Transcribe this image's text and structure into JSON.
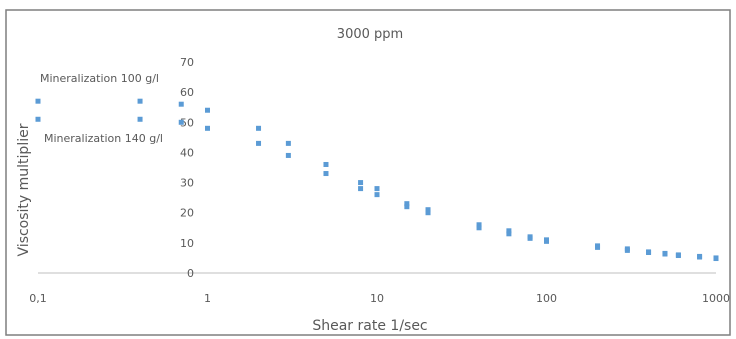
{
  "chart_data": {
    "type": "scatter",
    "title": "3000 ppm",
    "xlabel": "Shear rate 1/sec",
    "ylabel": "Viscosity multiplier",
    "x_scale": "log",
    "xlim": [
      0.1,
      1000
    ],
    "ylim": [
      0,
      70
    ],
    "x_ticks": [
      0.1,
      1,
      10,
      100,
      1000
    ],
    "x_tick_labels": [
      "0,1",
      "1",
      "10",
      "100",
      "1000"
    ],
    "y_ticks": [
      0,
      10,
      20,
      30,
      40,
      50,
      60,
      70
    ],
    "y_tick_labels": [
      "0",
      "10",
      "20",
      "30",
      "40",
      "50",
      "60",
      "70"
    ],
    "grid": false,
    "series": [
      {
        "name": "Mineralization 100 g/l",
        "color": "#5b9bd5",
        "x": [
          0.1,
          0.4,
          0.7,
          1,
          2,
          3,
          5,
          8,
          10,
          15,
          20,
          40,
          60,
          80,
          100,
          200,
          300,
          400,
          500,
          600,
          800,
          1000
        ],
        "y": [
          57,
          57,
          56,
          54,
          48,
          43,
          36,
          30,
          28,
          23,
          21,
          16,
          14,
          12,
          11,
          9,
          8,
          7,
          6.5,
          6,
          5.5,
          5
        ]
      },
      {
        "name": "Mineralization 140 g/l",
        "color": "#5b9bd5",
        "x": [
          0.1,
          0.4,
          0.7,
          1,
          2,
          3,
          5,
          8,
          10,
          15,
          20,
          40,
          60,
          80,
          100,
          200,
          300,
          400,
          500,
          600,
          800,
          1000
        ],
        "y": [
          51,
          51,
          50,
          48,
          43,
          39,
          33,
          28,
          26,
          22,
          20,
          15,
          13,
          11.5,
          10.5,
          8.5,
          7.5,
          6.8,
          6.3,
          5.8,
          5.3,
          4.8
        ]
      }
    ]
  }
}
